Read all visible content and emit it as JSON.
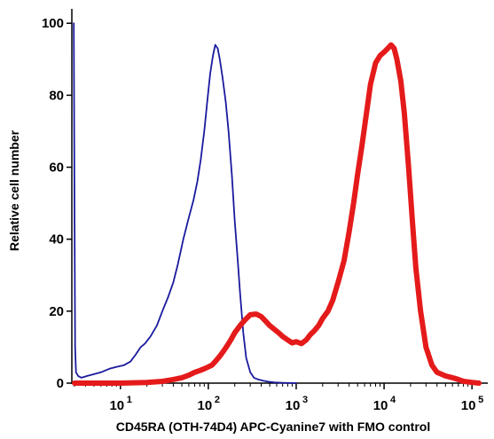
{
  "chart_data": {
    "type": "line",
    "title": "",
    "xlabel": "CD45RA (OTH-74D4) APC-Cyanine7 with FMO control",
    "ylabel": "Relative cell number",
    "x_scale": "log",
    "xlim": [
      2.8,
      120000
    ],
    "ylim": [
      0,
      104
    ],
    "x_ticks": [
      {
        "value": 10,
        "base": "10",
        "exp": "1"
      },
      {
        "value": 100,
        "base": "10",
        "exp": "2"
      },
      {
        "value": 1000,
        "base": "10",
        "exp": "3"
      },
      {
        "value": 10000,
        "base": "10",
        "exp": "4"
      },
      {
        "value": 100000,
        "base": "10",
        "exp": "5"
      }
    ],
    "y_ticks": [
      "0",
      "20",
      "40",
      "60",
      "80",
      "100"
    ],
    "grid": false,
    "legend": "none",
    "series": [
      {
        "color": "#1a1a9e",
        "x": [
          2.95,
          3.0,
          3.05,
          3.12,
          3.3,
          3.6,
          4.2,
          5.0,
          6.0,
          7.5,
          9.0,
          11.0,
          13.0,
          15.0,
          17.0,
          19.0,
          22.0,
          26.0,
          30.0,
          35.0,
          40.0,
          45.0,
          52.0,
          60.0,
          68.0,
          75.0,
          82.0,
          90.0,
          98.0,
          105.0,
          113.0,
          120.0,
          128.0,
          135.0,
          145.0,
          158.0,
          170.0,
          185.0,
          200.0,
          215.0,
          230.0,
          250.0,
          270.0,
          300.0,
          330.0,
          370.0,
          420.0,
          480.0,
          560.0,
          700.0,
          1000.0
        ],
        "y": [
          100,
          50,
          10,
          3,
          2,
          1.5,
          2,
          2.5,
          3,
          4,
          4.5,
          5,
          6,
          8,
          10,
          11,
          13,
          16,
          20,
          24,
          28,
          33,
          40,
          46,
          51,
          56,
          62,
          70,
          79,
          86,
          91,
          94,
          93,
          90,
          85,
          78,
          70,
          58,
          45,
          35,
          25,
          14,
          7,
          3,
          1.5,
          1,
          0.7,
          0.4,
          0.2,
          0.1,
          0
        ]
      },
      {
        "color": "#e51a1a",
        "x": [
          3,
          10,
          20,
          30,
          40,
          50,
          60,
          70,
          80,
          90,
          100,
          110,
          120,
          130,
          140,
          150,
          165,
          180,
          200,
          230,
          260,
          300,
          350,
          400,
          450,
          500,
          560,
          630,
          700,
          800,
          900,
          1000,
          1150,
          1300,
          1450,
          1600,
          1800,
          2000,
          2300,
          2600,
          3000,
          3500,
          4000,
          4500,
          5000,
          5600,
          6300,
          7000,
          8000,
          9000,
          10000,
          11000,
          12000,
          13000,
          14000,
          15500,
          17000,
          19000,
          21000,
          23000,
          26000,
          30000,
          35000,
          40000,
          50000,
          60000,
          70000,
          80000,
          100000,
          120000
        ],
        "y": [
          0,
          0,
          0.2,
          0.5,
          1,
          1.5,
          2.2,
          3,
          3.5,
          4,
          4.5,
          5,
          6,
          7,
          8,
          9,
          10.5,
          12,
          14,
          16,
          17.5,
          19,
          19.2,
          18.5,
          17.2,
          16,
          15,
          14,
          13,
          12,
          11.2,
          11.5,
          11,
          12,
          13.5,
          14.5,
          16,
          18,
          20,
          23,
          28,
          34,
          42,
          50,
          58,
          66,
          75,
          83,
          89,
          91,
          92,
          93,
          94,
          93,
          90,
          84,
          75,
          60,
          45,
          32,
          20,
          10,
          5,
          3,
          2,
          1.5,
          1,
          0.5,
          0.2,
          0
        ]
      }
    ]
  }
}
